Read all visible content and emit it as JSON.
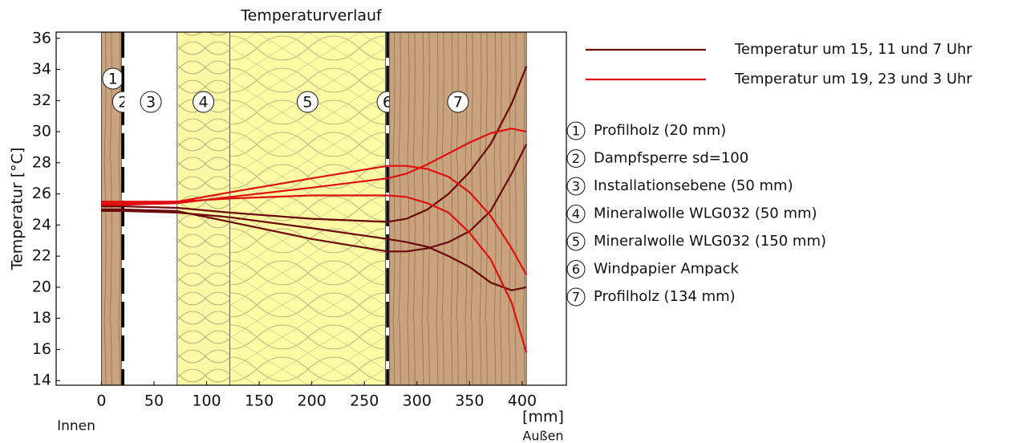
{
  "chart_data": {
    "type": "line",
    "title": "Temperaturverlauf",
    "y_label": "Temperatur [°C]",
    "x_unit": "[mm]",
    "x_left_label": "Innen",
    "x_right_label": "Außen",
    "xlim": [
      -43,
      442
    ],
    "ylim": [
      13.7,
      36.4
    ],
    "xticks": [
      0,
      50,
      100,
      150,
      200,
      250,
      300,
      350,
      400
    ],
    "yticks": [
      14,
      16,
      18,
      20,
      22,
      24,
      26,
      28,
      30,
      32,
      34,
      36
    ],
    "layers": [
      {
        "number": "1",
        "name": "Profilholz (20 mm)",
        "x0": 0,
        "x1": 19,
        "color": "#c9a27e"
      },
      {
        "number": "2",
        "name": "Dampfsperre sd=100",
        "x0": 19,
        "x1": 22,
        "color": "#000000"
      },
      {
        "number": "3",
        "name": "Installationsebene (50 mm)",
        "x0": 22,
        "x1": 72,
        "color": "#ffffff"
      },
      {
        "number": "4",
        "name": "Mineralwolle WLG032 (50 mm)",
        "x0": 72,
        "x1": 122,
        "color": "#fbf8a6"
      },
      {
        "number": "5",
        "name": "Mineralwolle WLG032 (150 mm)",
        "x0": 122,
        "x1": 270,
        "color": "#fdfba4"
      },
      {
        "number": "6",
        "name": "Windpapier Ampack",
        "x0": 270,
        "x1": 274,
        "color": "#000000"
      },
      {
        "number": "7",
        "name": "Profilholz (134 mm)",
        "x0": 274,
        "x1": 404,
        "color": "#c9a27e"
      }
    ],
    "x": [
      0,
      20,
      72,
      122,
      200,
      272,
      290,
      310,
      330,
      350,
      370,
      390,
      404
    ],
    "series": [
      {
        "name": "Temperatur um 15, 11 und 7 Uhr",
        "color": "#6b0a0a",
        "lines": [
          [
            25.2,
            25.2,
            25.1,
            24.8,
            24.4,
            24.2,
            24.4,
            25.0,
            26.0,
            27.4,
            29.2,
            31.8,
            34.2
          ],
          [
            25.0,
            25.0,
            24.9,
            24.2,
            23.1,
            22.3,
            22.3,
            22.5,
            22.9,
            23.6,
            24.9,
            27.3,
            29.2
          ],
          [
            24.9,
            24.9,
            24.8,
            24.5,
            23.8,
            23.1,
            22.9,
            22.6,
            22.0,
            21.3,
            20.3,
            19.8,
            20.0
          ]
        ]
      },
      {
        "name": "Temperatur um 19, 23 und 3 Uhr",
        "color": "#e01010",
        "lines": [
          [
            25.3,
            25.3,
            25.4,
            25.8,
            26.4,
            27.0,
            27.3,
            27.9,
            28.6,
            29.3,
            29.9,
            30.2,
            30.0
          ],
          [
            25.4,
            25.4,
            25.5,
            26.1,
            27.0,
            27.8,
            27.8,
            27.6,
            27.1,
            26.1,
            24.6,
            22.5,
            20.8
          ],
          [
            25.5,
            25.5,
            25.5,
            25.7,
            25.9,
            25.9,
            25.8,
            25.4,
            24.8,
            23.5,
            21.8,
            19.0,
            15.8
          ]
        ]
      }
    ]
  }
}
